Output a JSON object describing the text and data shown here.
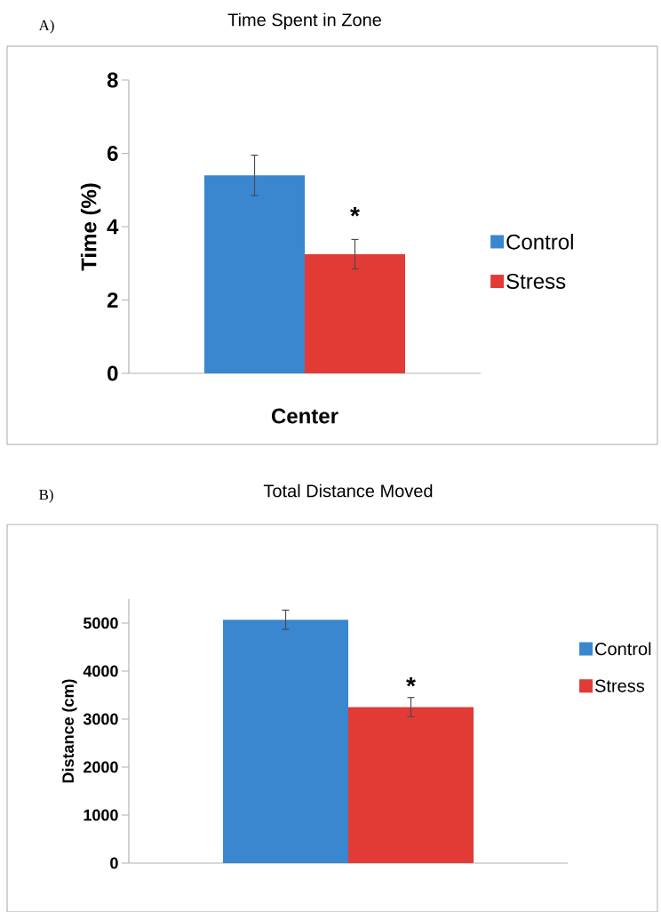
{
  "chart_data": [
    {
      "type": "bar",
      "title": "Time Spent in Zone",
      "ylabel": "Time (%)",
      "categories": [
        "Center"
      ],
      "series": [
        {
          "name": "Control",
          "color": "#3a87d0",
          "values": [
            5.4
          ],
          "errors": [
            0.55
          ]
        },
        {
          "name": "Stress",
          "color": "#e23b35",
          "values": [
            3.25
          ],
          "errors": [
            0.4
          ]
        }
      ],
      "ylim": [
        0,
        8
      ],
      "yticks": [
        0,
        2,
        4,
        6,
        8
      ],
      "legend": "right",
      "annotations": [
        "A)",
        {
          "text": "*",
          "x": "Center",
          "y": 4.3
        }
      ]
    },
    {
      "type": "bar",
      "title": "Total Distance Moved",
      "ylabel": "Distance (cm)",
      "categories": [
        null
      ],
      "series": [
        {
          "name": "Control",
          "color": "#3a87d0",
          "values": [
            5070
          ],
          "errors": [
            200
          ]
        },
        {
          "name": "Stress",
          "color": "#e23b35",
          "values": [
            3250
          ],
          "errors": [
            200
          ]
        }
      ],
      "ylim": [
        0,
        5500
      ],
      "yticks": [
        0,
        1000,
        2000,
        3000,
        4000,
        5000
      ],
      "legend": "right",
      "annotations": [
        "B)",
        "*"
      ]
    }
  ]
}
